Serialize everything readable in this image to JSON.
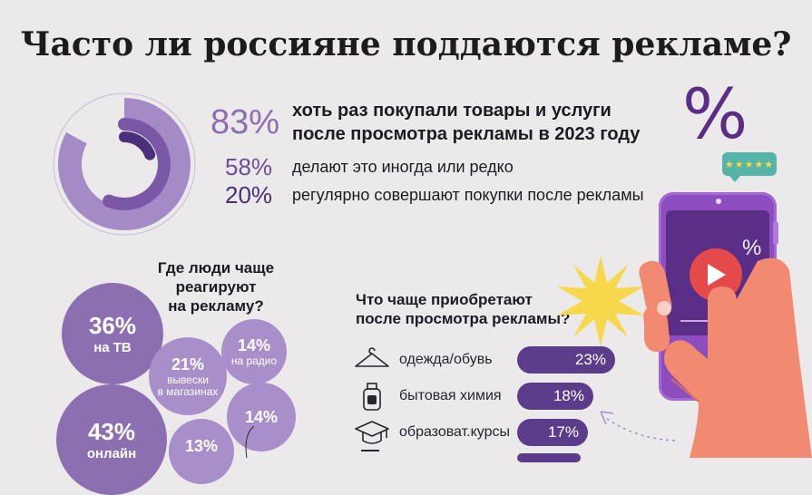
{
  "title": "Часто ли россияне поддаются рекламе?",
  "top_stats": [
    {
      "value": "83%",
      "text_line1": "хоть раз покупали товары и услуги",
      "text_line2": "после просмотра рекламы в 2023 году",
      "share": 0.83
    },
    {
      "value": "58%",
      "text": "делают это иногда или редко",
      "share": 0.58
    },
    {
      "value": "20%",
      "text": "регулярно совершают покупки после рекламы",
      "share": 0.2
    }
  ],
  "where_react": {
    "title_lines": [
      "Где люди чаще",
      "реагируют",
      "на рекламу?"
    ],
    "bubbles": [
      {
        "value": "36%",
        "label": "на ТВ"
      },
      {
        "value": "14%",
        "label": "на радио"
      },
      {
        "value": "21%",
        "label_lines": [
          "вывески",
          "в магазинах"
        ]
      },
      {
        "value": "14%",
        "label": ""
      },
      {
        "value": "43%",
        "label": "онлайн"
      },
      {
        "value": "13%",
        "label": ""
      }
    ]
  },
  "what_buy": {
    "title_lines": [
      "Что чаще приобретают",
      "после просмотра рекламы?"
    ],
    "items": [
      {
        "icon": "hanger-icon",
        "label": "одежда/обувь",
        "value": "23%",
        "share": 23
      },
      {
        "icon": "detergent-bottle-icon",
        "label": "бытовая химия",
        "value": "18%",
        "share": 18
      },
      {
        "icon": "graduation-cap-icon",
        "label": "образоват.курсы",
        "value": "17%",
        "share": 17
      }
    ]
  },
  "phone": {
    "percent_sign": "%",
    "stars": "★★★★★"
  },
  "colors": {
    "purple_light": "#a98fc9",
    "purple_mid": "#8c6fb0",
    "purple_dark": "#5b3c8a",
    "phone_body": "#8e4dbf",
    "hand": "#f28a72",
    "sun": "#f7d84a",
    "background": "#ebe9ea"
  }
}
